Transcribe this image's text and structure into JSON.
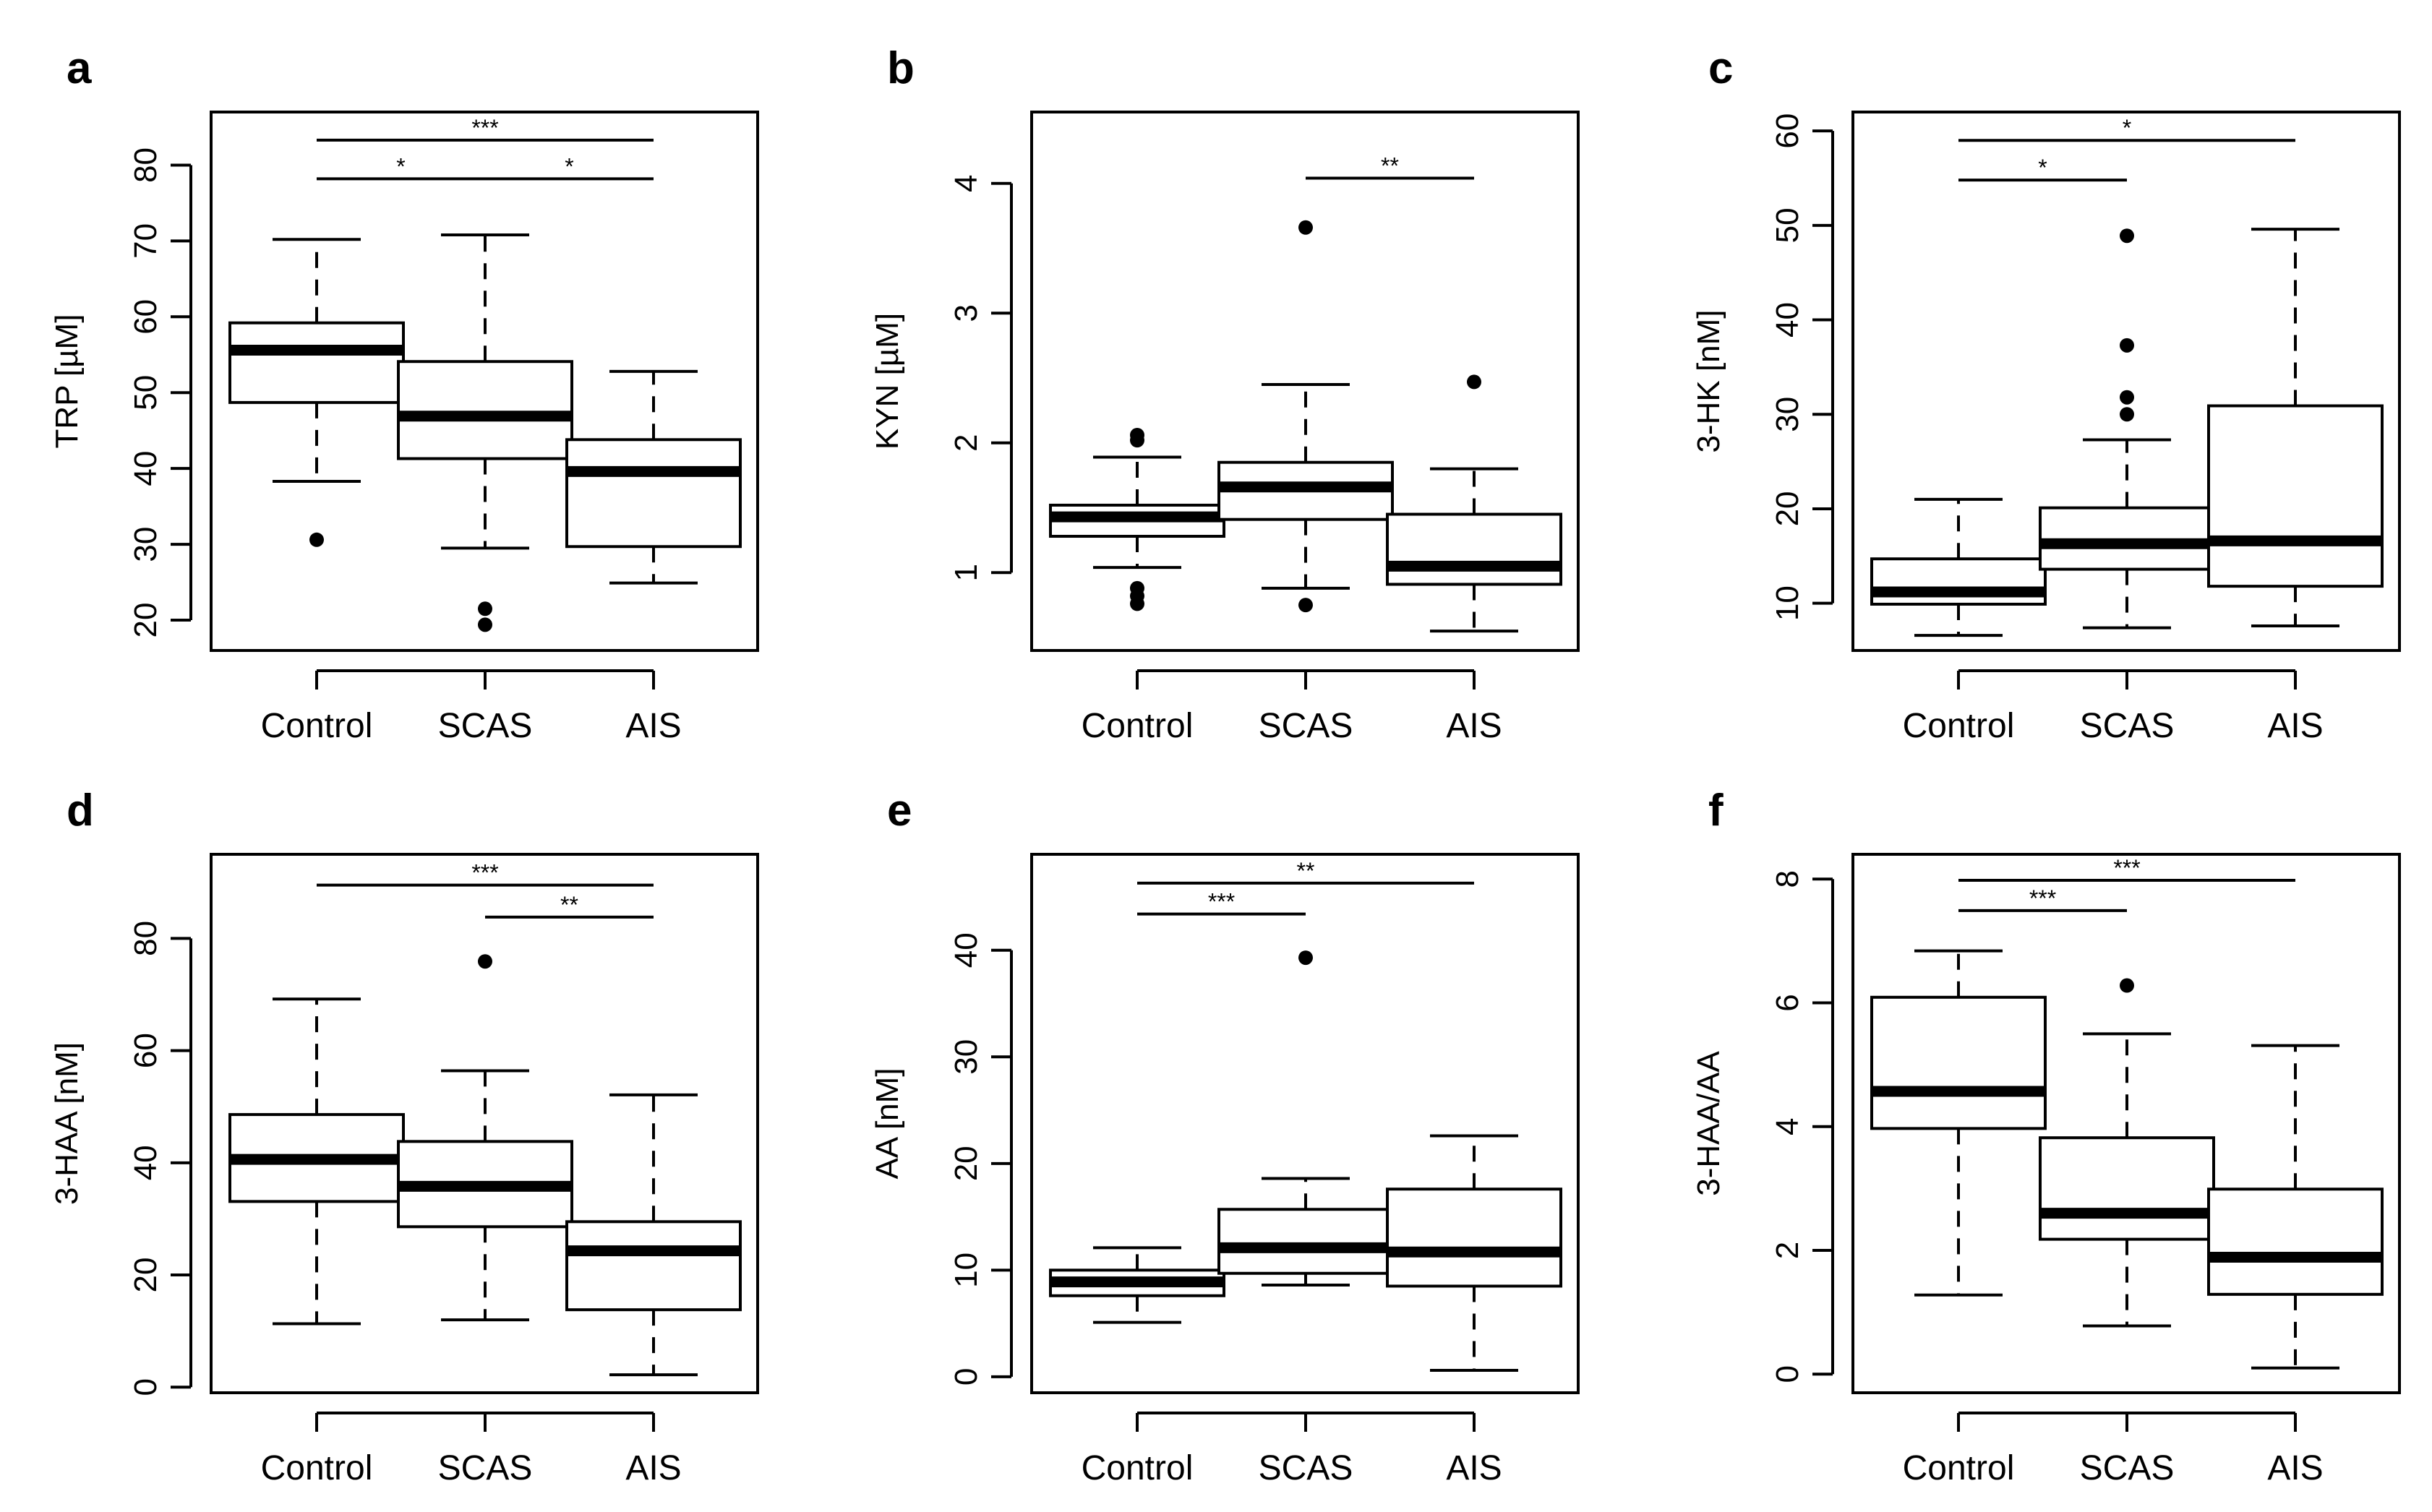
{
  "figure": {
    "panel_count": 6
  },
  "chart_data": [
    {
      "type": "box",
      "panel": "a",
      "ylabel": "TRP [µM]",
      "ylim": [
        16,
        87
      ],
      "yticks": [
        20,
        30,
        40,
        50,
        60,
        70,
        80
      ],
      "categories": [
        "Control",
        "SCAS",
        "AIS"
      ],
      "boxes": [
        {
          "category": "Control",
          "whisker_low": 38.3,
          "q1": 48.7,
          "median": 55.6,
          "q3": 59.2,
          "whisker_high": 70.2,
          "outliers": [
            30.6
          ]
        },
        {
          "category": "SCAS",
          "whisker_low": 29.5,
          "q1": 41.3,
          "median": 46.9,
          "q3": 54.1,
          "whisker_high": 70.8,
          "outliers": [
            21.5,
            19.4
          ]
        },
        {
          "category": "AIS",
          "whisker_low": 24.9,
          "q1": 29.7,
          "median": 39.6,
          "q3": 43.8,
          "whisker_high": 52.8,
          "outliers": []
        }
      ],
      "significance": [
        {
          "from": 1,
          "to": 2,
          "label": "*",
          "y": 78.2
        },
        {
          "from": 2,
          "to": 3,
          "label": "*",
          "y": 78.2
        },
        {
          "from": 1,
          "to": 3,
          "label": "***",
          "y": 83.3
        }
      ]
    },
    {
      "type": "box",
      "panel": "b",
      "ylabel": "KYN [µM]",
      "ylim": [
        0.4,
        4.55
      ],
      "yticks": [
        1,
        2,
        3,
        4
      ],
      "categories": [
        "Control",
        "SCAS",
        "AIS"
      ],
      "boxes": [
        {
          "category": "Control",
          "whisker_low": 1.04,
          "q1": 1.28,
          "median": 1.43,
          "q3": 1.52,
          "whisker_high": 1.89,
          "outliers": [
            2.02,
            2.06,
            0.88,
            0.82,
            0.76
          ]
        },
        {
          "category": "SCAS",
          "whisker_low": 0.88,
          "q1": 1.41,
          "median": 1.66,
          "q3": 1.85,
          "whisker_high": 2.45,
          "outliers": [
            3.66,
            0.75
          ]
        },
        {
          "category": "AIS",
          "whisker_low": 0.55,
          "q1": 0.91,
          "median": 1.05,
          "q3": 1.45,
          "whisker_high": 1.8,
          "outliers": [
            2.47
          ]
        }
      ],
      "significance": [
        {
          "from": 2,
          "to": 3,
          "label": "**",
          "y": 4.04
        }
      ]
    },
    {
      "type": "box",
      "panel": "c",
      "ylabel": "3-HK [nM]",
      "ylim": [
        5,
        62
      ],
      "yticks": [
        10,
        20,
        30,
        40,
        50,
        60
      ],
      "categories": [
        "Control",
        "SCAS",
        "AIS"
      ],
      "boxes": [
        {
          "category": "Control",
          "whisker_low": 6.6,
          "q1": 9.9,
          "median": 11.2,
          "q3": 14.7,
          "whisker_high": 21.0,
          "outliers": []
        },
        {
          "category": "SCAS",
          "whisker_low": 7.4,
          "q1": 13.6,
          "median": 16.3,
          "q3": 20.1,
          "whisker_high": 27.3,
          "outliers": [
            48.9,
            37.3,
            31.8,
            30.0
          ]
        },
        {
          "category": "AIS",
          "whisker_low": 7.6,
          "q1": 11.8,
          "median": 16.6,
          "q3": 30.9,
          "whisker_high": 49.6,
          "outliers": []
        }
      ],
      "significance": [
        {
          "from": 1,
          "to": 2,
          "label": "*",
          "y": 54.8
        },
        {
          "from": 1,
          "to": 3,
          "label": "*",
          "y": 59.0
        }
      ]
    },
    {
      "type": "box",
      "panel": "d",
      "ylabel": "3-HAA [nM]",
      "ylim": [
        -1,
        95
      ],
      "yticks": [
        0,
        20,
        40,
        60,
        80
      ],
      "categories": [
        "Control",
        "SCAS",
        "AIS"
      ],
      "boxes": [
        {
          "category": "Control",
          "whisker_low": 11.3,
          "q1": 33.1,
          "median": 40.6,
          "q3": 48.6,
          "whisker_high": 69.2,
          "outliers": []
        },
        {
          "category": "SCAS",
          "whisker_low": 12.0,
          "q1": 28.6,
          "median": 35.8,
          "q3": 43.8,
          "whisker_high": 56.4,
          "outliers": [
            75.9
          ]
        },
        {
          "category": "AIS",
          "whisker_low": 2.2,
          "q1": 13.8,
          "median": 24.3,
          "q3": 29.5,
          "whisker_high": 52.1,
          "outliers": []
        }
      ],
      "significance": [
        {
          "from": 2,
          "to": 3,
          "label": "**",
          "y": 83.8
        },
        {
          "from": 1,
          "to": 3,
          "label": "***",
          "y": 89.5
        }
      ]
    },
    {
      "type": "box",
      "panel": "e",
      "ylabel": "AA [nM]",
      "ylim": [
        -1.5,
        49
      ],
      "yticks": [
        0,
        10,
        20,
        30,
        40
      ],
      "categories": [
        "Control",
        "SCAS",
        "AIS"
      ],
      "boxes": [
        {
          "category": "Control",
          "whisker_low": 5.1,
          "q1": 7.6,
          "median": 8.9,
          "q3": 10.0,
          "whisker_high": 12.1,
          "outliers": []
        },
        {
          "category": "SCAS",
          "whisker_low": 8.6,
          "q1": 9.7,
          "median": 12.1,
          "q3": 15.7,
          "whisker_high": 18.6,
          "outliers": [
            39.3
          ]
        },
        {
          "category": "AIS",
          "whisker_low": 0.6,
          "q1": 8.5,
          "median": 11.7,
          "q3": 17.6,
          "whisker_high": 22.6,
          "outliers": []
        }
      ],
      "significance": [
        {
          "from": 1,
          "to": 2,
          "label": "***",
          "y": 43.4
        },
        {
          "from": 1,
          "to": 3,
          "label": "**",
          "y": 46.3
        }
      ]
    },
    {
      "type": "box",
      "panel": "f",
      "ylabel": "3-HAA/AA",
      "ylim": [
        -0.3,
        8.4
      ],
      "yticks": [
        0,
        2,
        4,
        6,
        8
      ],
      "categories": [
        "Control",
        "SCAS",
        "AIS"
      ],
      "boxes": [
        {
          "category": "Control",
          "whisker_low": 1.28,
          "q1": 3.97,
          "median": 4.57,
          "q3": 6.09,
          "whisker_high": 6.84,
          "outliers": []
        },
        {
          "category": "SCAS",
          "whisker_low": 0.78,
          "q1": 2.18,
          "median": 2.6,
          "q3": 3.82,
          "whisker_high": 5.5,
          "outliers": [
            6.28
          ]
        },
        {
          "category": "AIS",
          "whisker_low": 0.1,
          "q1": 1.29,
          "median": 1.89,
          "q3": 2.99,
          "whisker_high": 5.31,
          "outliers": []
        }
      ],
      "significance": [
        {
          "from": 1,
          "to": 2,
          "label": "***",
          "y": 7.49
        },
        {
          "from": 1,
          "to": 3,
          "label": "***",
          "y": 7.98
        }
      ]
    }
  ]
}
